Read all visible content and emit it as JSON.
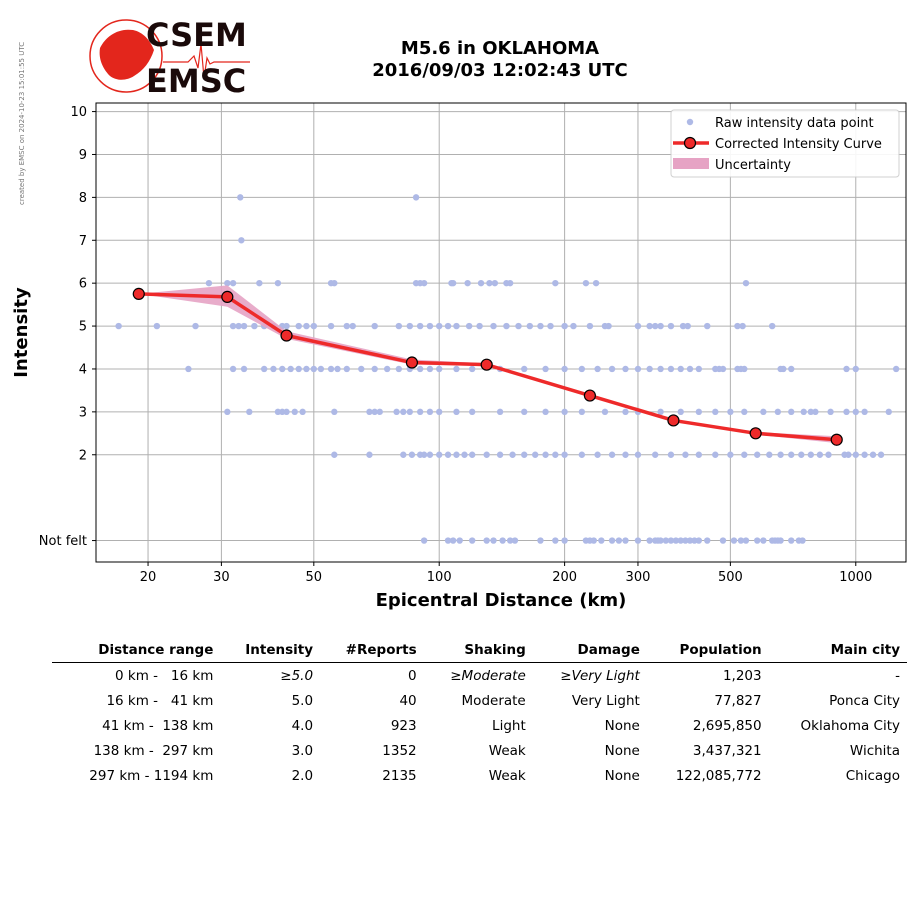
{
  "stamp": "created by EMSC on 2024-10-23 15:01:55 UTC",
  "logo": {
    "top": "CSEM",
    "bottom": "EMSC"
  },
  "title_line1": "M5.6 in OKLAHOMA",
  "title_line2": "2016/09/03 12:02:43 UTC",
  "colors": {
    "raw": "#aeb9e6",
    "curve": "#ee2a2a",
    "marker": "#ee2a2a",
    "uncertainty": "#e6a3c4",
    "logo": "#e3261c"
  },
  "chart_data": {
    "type": "scatter",
    "xlabel": "Epicentral Distance (km)",
    "ylabel": "Intensity",
    "xscale": "log",
    "xlim": [
      15,
      1320
    ],
    "ylim": [
      -0.5,
      10.2
    ],
    "xticks": [
      20,
      30,
      50,
      100,
      200,
      300,
      500,
      1000
    ],
    "yticks": [
      {
        "v": 0,
        "label": "Not felt"
      },
      {
        "v": 2,
        "label": "2"
      },
      {
        "v": 3,
        "label": "3"
      },
      {
        "v": 4,
        "label": "4"
      },
      {
        "v": 5,
        "label": "5"
      },
      {
        "v": 6,
        "label": "6"
      },
      {
        "v": 7,
        "label": "7"
      },
      {
        "v": 8,
        "label": "8"
      },
      {
        "v": 9,
        "label": "9"
      },
      {
        "v": 10,
        "label": "10"
      }
    ],
    "grid": true,
    "legend_position": "top-right",
    "legend": [
      "Raw intensity data point",
      "Corrected Intensity Curve",
      "Uncertainty"
    ],
    "curve": {
      "name": "Corrected Intensity Curve",
      "x": [
        19,
        31,
        43,
        86,
        130,
        230,
        365,
        575,
        900
      ],
      "y": [
        5.75,
        5.68,
        4.78,
        4.15,
        4.1,
        3.38,
        2.8,
        2.5,
        2.35
      ],
      "lower": [
        5.75,
        5.45,
        4.7,
        4.1,
        4.07,
        3.36,
        2.78,
        2.47,
        2.27
      ],
      "upper": [
        5.75,
        5.95,
        4.88,
        4.22,
        4.13,
        3.4,
        2.82,
        2.53,
        2.43
      ]
    },
    "raw": [
      {
        "y": 8,
        "x": [
          33.3,
          88
        ]
      },
      {
        "y": 7,
        "x": [
          33.5
        ]
      },
      {
        "y": 6,
        "x": [
          28,
          31,
          32,
          37,
          41,
          55,
          56,
          88,
          90,
          92,
          107,
          108,
          117,
          126,
          132,
          136,
          145,
          148,
          190,
          225,
          238,
          545
        ]
      },
      {
        "y": 5,
        "x": [
          17,
          21,
          26,
          32,
          33,
          34,
          36,
          38,
          40,
          42,
          43,
          46,
          48,
          50,
          55,
          60,
          62,
          70,
          80,
          85,
          90,
          95,
          100,
          105,
          110,
          118,
          125,
          135,
          145,
          155,
          165,
          175,
          185,
          200,
          210,
          230,
          250,
          255,
          300,
          320,
          330,
          340,
          360,
          385,
          395,
          440,
          520,
          535,
          630
        ]
      },
      {
        "y": 4,
        "x": [
          25,
          32,
          34,
          38,
          40,
          42,
          44,
          46,
          48,
          50,
          52,
          55,
          57,
          60,
          65,
          70,
          75,
          80,
          85,
          90,
          95,
          100,
          110,
          120,
          140,
          160,
          180,
          200,
          220,
          240,
          260,
          280,
          300,
          320,
          340,
          360,
          380,
          400,
          420,
          460,
          470,
          480,
          520,
          530,
          540,
          660,
          670,
          700,
          950,
          1000,
          1250
        ]
      },
      {
        "y": 3,
        "x": [
          31,
          35,
          41,
          42,
          43,
          45,
          47,
          56,
          68,
          70,
          72,
          79,
          82,
          85,
          90,
          95,
          100,
          110,
          120,
          140,
          160,
          180,
          200,
          220,
          250,
          280,
          300,
          340,
          380,
          420,
          460,
          500,
          540,
          600,
          650,
          700,
          750,
          780,
          800,
          870,
          950,
          1000,
          1050,
          1200
        ]
      },
      {
        "y": 2,
        "x": [
          56,
          68,
          82,
          86,
          90,
          92,
          95,
          100,
          105,
          110,
          115,
          120,
          130,
          140,
          150,
          160,
          170,
          180,
          190,
          200,
          220,
          240,
          260,
          280,
          300,
          330,
          360,
          390,
          420,
          460,
          500,
          540,
          580,
          620,
          660,
          700,
          740,
          780,
          820,
          860,
          940,
          960,
          1000,
          1050,
          1100,
          1150
        ]
      },
      {
        "y": 0,
        "x": [
          92,
          105,
          108,
          112,
          120,
          130,
          135,
          142,
          148,
          152,
          175,
          190,
          200,
          225,
          230,
          235,
          245,
          260,
          270,
          280,
          300,
          320,
          330,
          335,
          340,
          350,
          360,
          370,
          380,
          390,
          400,
          410,
          420,
          440,
          480,
          510,
          530,
          545,
          580,
          600,
          630,
          640,
          650,
          660,
          700,
          730,
          745
        ]
      }
    ]
  },
  "table": {
    "headers": [
      "Distance range",
      "Intensity",
      "#Reports",
      "Shaking",
      "Damage",
      "Population",
      "Main city"
    ],
    "rows": [
      {
        "range": "0 km -   16 km",
        "intensity": "≥5.0",
        "reports": "0",
        "shaking": "≥Moderate",
        "damage": "≥Very Light",
        "population": "1,203",
        "city": "-",
        "italic": true
      },
      {
        "range": "16 km -   41 km",
        "intensity": "5.0",
        "reports": "40",
        "shaking": "Moderate",
        "damage": "Very Light",
        "population": "77,827",
        "city": "Ponca City",
        "italic": false
      },
      {
        "range": "41 km -  138 km",
        "intensity": "4.0",
        "reports": "923",
        "shaking": "Light",
        "damage": "None",
        "population": "2,695,850",
        "city": "Oklahoma City",
        "italic": false
      },
      {
        "range": "138 km -  297 km",
        "intensity": "3.0",
        "reports": "1352",
        "shaking": "Weak",
        "damage": "None",
        "population": "3,437,321",
        "city": "Wichita",
        "italic": false
      },
      {
        "range": "297 km - 1194 km",
        "intensity": "2.0",
        "reports": "2135",
        "shaking": "Weak",
        "damage": "None",
        "population": "122,085,772",
        "city": "Chicago",
        "italic": false
      }
    ]
  }
}
